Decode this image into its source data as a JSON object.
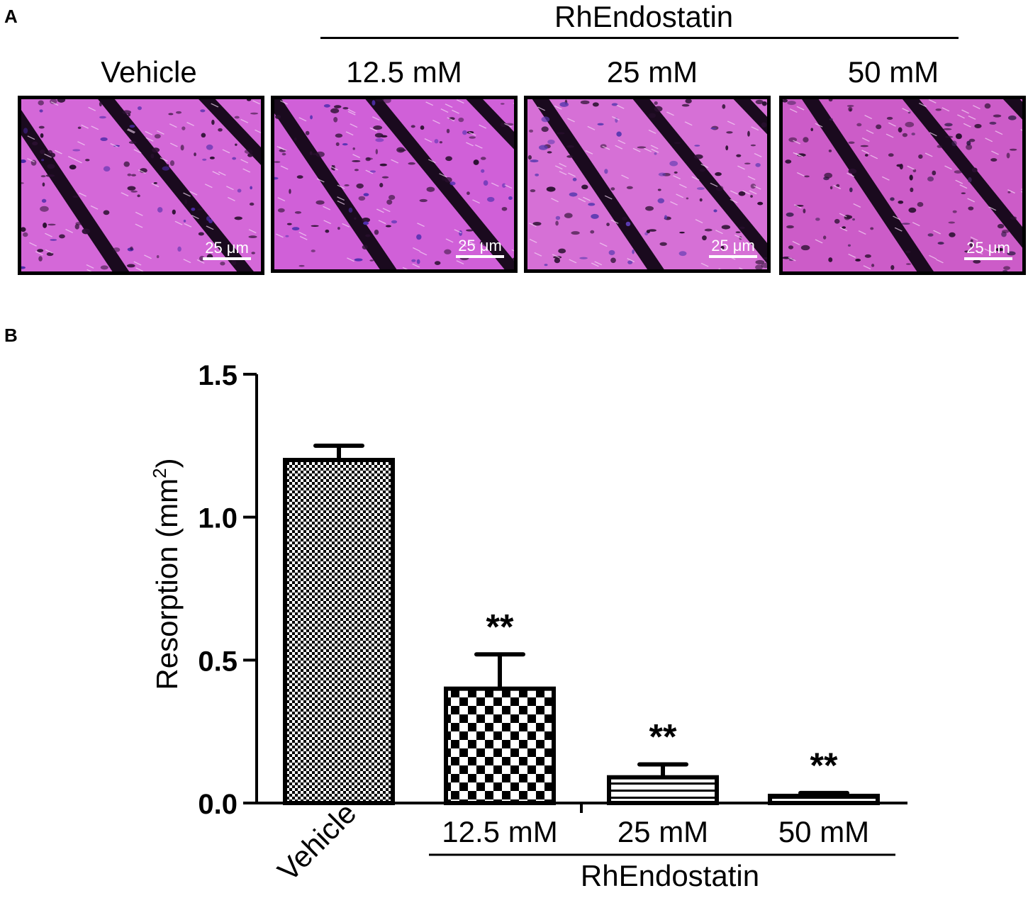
{
  "panel_a": {
    "letter": "A",
    "group_label": "RhEndostatin",
    "images": [
      {
        "label": "Vehicle",
        "scale": "25 μm",
        "fiber_color": "#d468d8",
        "stain": "#4a2aa8"
      },
      {
        "label": "12.5 mM",
        "scale": "25 μm",
        "fiber_color": "#d060d8",
        "stain": "#5030b0"
      },
      {
        "label": "25 mM",
        "scale": "25 μm",
        "fiber_color": "#d670d6",
        "stain": "#5a3ab0"
      },
      {
        "label": "50 mM",
        "scale": "25 μm",
        "fiber_color": "#cc5cc8",
        "stain": "#3a2050"
      }
    ]
  },
  "panel_b": {
    "letter": "B"
  },
  "chart_data": {
    "type": "bar",
    "title": "",
    "ylabel": "Resorption (mm",
    "ylabel_superscript": "2",
    "ylabel_suffix": ")",
    "xlabel": "",
    "group_label": "RhEndostatin",
    "ylim": [
      0,
      1.5
    ],
    "yticks": [
      "0.0",
      "0.5",
      "1.0",
      "1.5"
    ],
    "ytick_values": [
      0,
      0.5,
      1.0,
      1.5
    ],
    "categories": [
      "Vehicle",
      "12.5 mM",
      "25 mM",
      "50 mM"
    ],
    "values": [
      1.2,
      0.4,
      0.09,
      0.025
    ],
    "errors": [
      0.05,
      0.12,
      0.045,
      0.01
    ],
    "annotations": [
      "",
      "**",
      "**",
      "**"
    ],
    "patterns": [
      "fine-checker",
      "coarse-checker",
      "horizontal-lines",
      "horizontal-lines"
    ],
    "grid": false,
    "legend": "none"
  }
}
